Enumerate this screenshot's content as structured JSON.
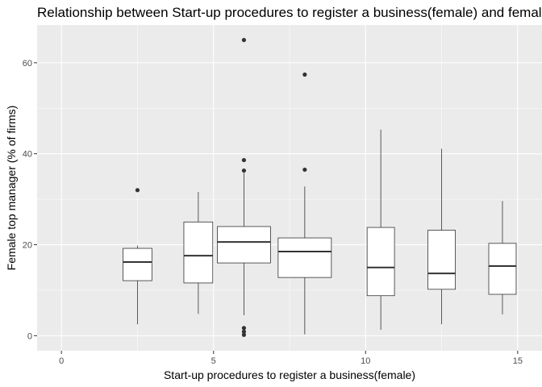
{
  "chart_data": {
    "type": "boxplot",
    "title": "Relationship between  Start-up procedures to register a business(female) and female top manager (% of firms)",
    "xlabel": "Start-up procedures to register a business(female)",
    "ylabel": "Female top manager (% of firms)",
    "xlim": [
      -0.8,
      15.8
    ],
    "ylim": [
      -3.3,
      68.3
    ],
    "x_ticks": [
      0,
      5,
      10,
      15
    ],
    "y_ticks": [
      0,
      20,
      40,
      60
    ],
    "grid": true,
    "legend": "none",
    "colors": {
      "panel_background": "#ebebeb",
      "grid_major": "#ffffff",
      "box_fill": "#ffffff",
      "box_line": "#333333",
      "outlier": "#333333",
      "tick_label": "#4d4d4d",
      "tick": "#333333"
    },
    "boxes": [
      {
        "x": 2.5,
        "width": 0.95,
        "min": 2.5,
        "q1": 12.1,
        "median": 16.2,
        "q3": 19.2,
        "max": 19.8,
        "outliers": [
          32.0
        ]
      },
      {
        "x": 4.5,
        "width": 0.95,
        "min": 4.8,
        "q1": 11.6,
        "median": 17.6,
        "q3": 25.0,
        "max": 31.6,
        "outliers": []
      },
      {
        "x": 6.0,
        "width": 1.75,
        "min": 4.5,
        "q1": 16.0,
        "median": 20.6,
        "q3": 24.0,
        "max": 35.8,
        "outliers": [
          65.0,
          38.6,
          36.3,
          1.7,
          0.9,
          0.2
        ]
      },
      {
        "x": 8.0,
        "width": 1.75,
        "min": 0.3,
        "q1": 12.8,
        "median": 18.5,
        "q3": 21.5,
        "max": 32.8,
        "outliers": [
          57.4,
          36.5
        ]
      },
      {
        "x": 10.5,
        "width": 0.9,
        "min": 1.3,
        "q1": 8.8,
        "median": 15.0,
        "q3": 23.8,
        "max": 45.3,
        "outliers": []
      },
      {
        "x": 12.5,
        "width": 0.9,
        "min": 2.5,
        "q1": 10.2,
        "median": 13.7,
        "q3": 23.2,
        "max": 41.1,
        "outliers": []
      },
      {
        "x": 14.5,
        "width": 0.9,
        "min": 4.7,
        "q1": 9.1,
        "median": 15.3,
        "q3": 20.3,
        "max": 29.6,
        "outliers": []
      }
    ]
  }
}
